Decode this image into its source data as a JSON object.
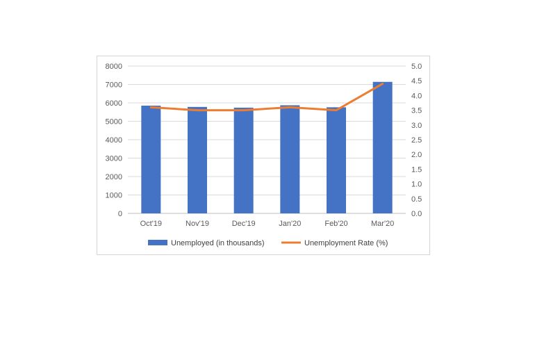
{
  "chart_data": {
    "type": "bar",
    "categories": [
      "Oct'19",
      "Nov'19",
      "Dec'19",
      "Jan'20",
      "Feb'20",
      "Mar'20"
    ],
    "series": [
      {
        "name": "Unemployed (in thousands)",
        "type": "bar",
        "axis": "left",
        "color": "#4472c4",
        "values": [
          5850,
          5780,
          5740,
          5870,
          5760,
          7140
        ]
      },
      {
        "name": "Unemployment Rate (%)",
        "type": "line",
        "axis": "right",
        "color": "#ed7d31",
        "values": [
          3.6,
          3.5,
          3.5,
          3.6,
          3.5,
          4.4
        ]
      }
    ],
    "ylim_left": [
      0,
      8000
    ],
    "yticks_left": [
      "0",
      "1000",
      "2000",
      "3000",
      "4000",
      "5000",
      "6000",
      "7000",
      "8000"
    ],
    "ylim_right": [
      0,
      5
    ],
    "yticks_right": [
      "0.0",
      "0.5",
      "1.0",
      "1.5",
      "2.0",
      "2.5",
      "3.0",
      "3.5",
      "4.0",
      "4.5",
      "5.0"
    ],
    "grid": true,
    "legend_position": "bottom"
  }
}
